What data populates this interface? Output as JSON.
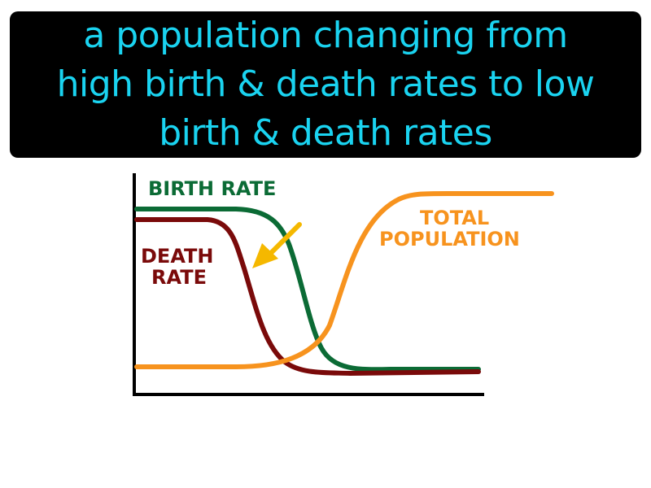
{
  "banner": {
    "line1": "a population changing from",
    "line2": "high birth & death rates to low",
    "line3": "birth & death rates"
  },
  "labels": {
    "birth_rate": "BIRTH RATE",
    "death_rate_line1": "DEATH",
    "death_rate_line2": "RATE",
    "total_population_line1": "TOTAL",
    "total_population_line2": "POPULATION"
  },
  "colors": {
    "banner_bg": "#000000",
    "banner_text": "#1ad3f0",
    "birth_rate": "#0b6b35",
    "death_rate": "#7a0a0a",
    "total_population": "#f7931e",
    "arrow": "#f5b800",
    "axes": "#000000"
  }
}
